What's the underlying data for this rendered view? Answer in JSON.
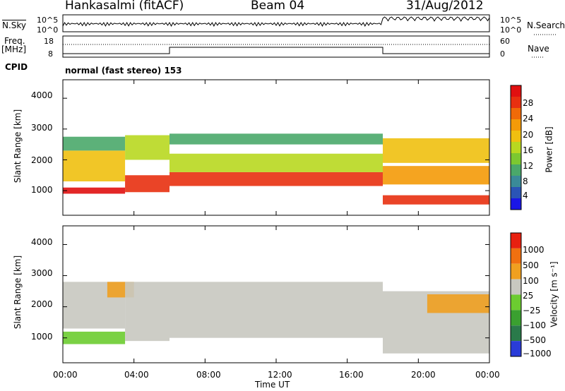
{
  "header": {
    "station": "Hankasalmi (fitACF)",
    "beam": "Beam 04",
    "date": "31/Aug/2012"
  },
  "summary": {
    "nsky_label": "N.Sky",
    "nsky_ticks": [
      "10^5",
      "10^0"
    ],
    "nsearch_label": "N.Search",
    "nsearch_ticks": [
      "10^5",
      "10^0"
    ],
    "freq_label_1": "Freq.",
    "freq_label_2": "[MHz]",
    "freq_ticks": [
      "18",
      "8"
    ],
    "nave_label": "Nave",
    "nave_ticks": [
      "60",
      "0"
    ],
    "cpid_label": "CPID",
    "cpid_text": "normal (fast stereo) 153"
  },
  "chart_data": [
    {
      "type": "heatmap",
      "panel": "power",
      "ylabel": "Slant Range [km]",
      "yticks": [
        "1000",
        "2000",
        "3000",
        "4000"
      ],
      "ylim": [
        200,
        4600
      ],
      "colorbar_label": "Power [dB]",
      "colorbar_ticks": [
        "28",
        "24",
        "20",
        "16",
        "12",
        "8",
        "4"
      ],
      "colorscale": [
        "#1a16e6",
        "#2a54b6",
        "#3a8a98",
        "#4aa86a",
        "#7cc830",
        "#b8d820",
        "#f0c010",
        "#f49a08",
        "#f06a08",
        "#e83010",
        "#e01010"
      ],
      "x_start_hours": 0,
      "x_end_hours": 24,
      "bands": [
        {
          "t": [
            0,
            3.5
          ],
          "range": [
            900,
            1100
          ],
          "level": 0.95
        },
        {
          "t": [
            0,
            3.5
          ],
          "range": [
            1300,
            2300
          ],
          "level": 0.6
        },
        {
          "t": [
            0,
            3.5
          ],
          "range": [
            2300,
            2750
          ],
          "level": 0.25
        },
        {
          "t": [
            3.5,
            6
          ],
          "range": [
            950,
            1500
          ],
          "level": 0.85
        },
        {
          "t": [
            3.5,
            6
          ],
          "range": [
            2000,
            2800
          ],
          "level": 0.5
        },
        {
          "t": [
            6,
            18
          ],
          "range": [
            1150,
            1600
          ],
          "level": 0.85
        },
        {
          "t": [
            6,
            18
          ],
          "range": [
            1600,
            2200
          ],
          "level": 0.45
        },
        {
          "t": [
            6,
            18
          ],
          "range": [
            2500,
            2850
          ],
          "level": 0.3
        },
        {
          "t": [
            18,
            24
          ],
          "range": [
            550,
            850
          ],
          "level": 0.9
        },
        {
          "t": [
            18,
            24
          ],
          "range": [
            1200,
            1800
          ],
          "level": 0.7
        },
        {
          "t": [
            18,
            24
          ],
          "range": [
            1900,
            2700
          ],
          "level": 0.55
        }
      ]
    },
    {
      "type": "heatmap",
      "panel": "velocity",
      "ylabel": "Slant Range [km]",
      "yticks": [
        "1000",
        "2000",
        "3000",
        "4000"
      ],
      "ylim": [
        200,
        4600
      ],
      "colorbar_label": "Velocity [m s⁻¹]",
      "colorbar_ticks": [
        "1000",
        "500",
        "100",
        "25",
        "−25",
        "−100",
        "−500",
        "−1000"
      ],
      "colorscale": [
        "#2a3cd8",
        "#2a7a4a",
        "#3aa030",
        "#6ccc30",
        "#c8c8c0",
        "#f0a020",
        "#f07010",
        "#e82010"
      ],
      "bands": [
        {
          "t": [
            0,
            3.5
          ],
          "range": [
            800,
            1200
          ],
          "color": "#6ccc30"
        },
        {
          "t": [
            0,
            3.5
          ],
          "range": [
            1300,
            2800
          ],
          "color": "#c8c8c0"
        },
        {
          "t": [
            2.5,
            4
          ],
          "range": [
            2300,
            2800
          ],
          "color": "#f0a020"
        },
        {
          "t": [
            3.5,
            6
          ],
          "range": [
            900,
            2800
          ],
          "color": "#c8c8c0"
        },
        {
          "t": [
            6,
            18
          ],
          "range": [
            1000,
            2800
          ],
          "color": "#c8c8c0"
        },
        {
          "t": [
            18,
            24
          ],
          "range": [
            500,
            2500
          ],
          "color": "#c8c8c0"
        },
        {
          "t": [
            20.5,
            24
          ],
          "range": [
            1800,
            2400
          ],
          "color": "#f0a020"
        }
      ]
    }
  ],
  "xaxis": {
    "ticks": [
      "00:00",
      "04:00",
      "08:00",
      "12:00",
      "16:00",
      "20:00",
      "00:00"
    ],
    "label": "Time UT"
  }
}
